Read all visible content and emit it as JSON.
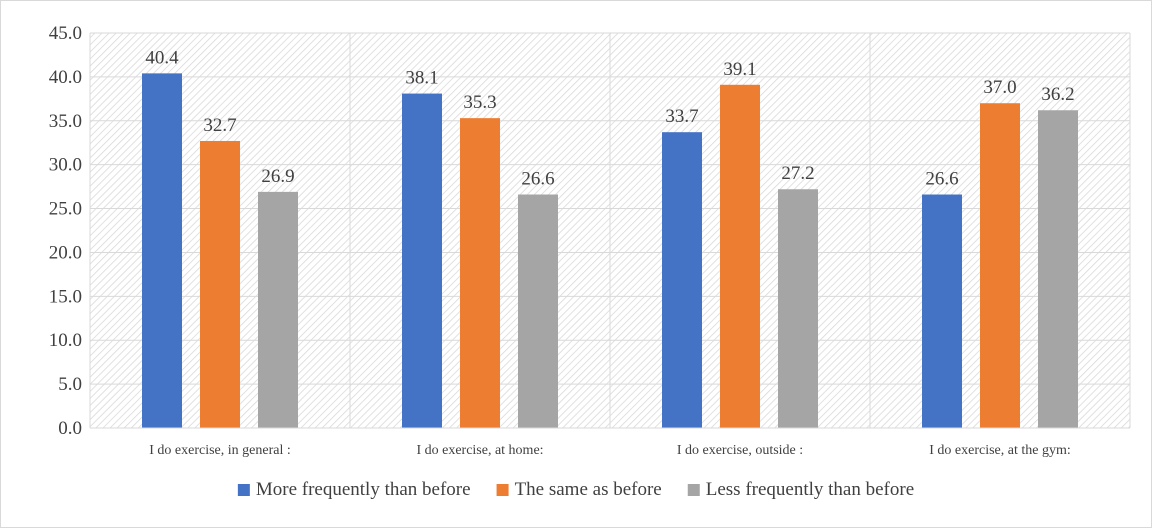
{
  "chart_data": {
    "type": "bar",
    "title": "",
    "xlabel": "",
    "ylabel": "",
    "categories": [
      "I do exercise, in general :",
      "I do exercise, at home:",
      "I do exercise, outside :",
      "I do exercise, at the gym:"
    ],
    "series": [
      {
        "name": "More frequently than before",
        "color": "#4472C4",
        "values": [
          40.4,
          38.1,
          33.7,
          26.6
        ]
      },
      {
        "name": "The same as before",
        "color": "#ED7D31",
        "values": [
          32.7,
          35.3,
          39.1,
          37.0
        ]
      },
      {
        "name": "Less frequently than before",
        "color": "#A5A5A5",
        "values": [
          26.9,
          26.6,
          27.2,
          36.2
        ]
      }
    ],
    "ylim": [
      0,
      45
    ],
    "yticks": [
      "0.0",
      "5.0",
      "10.0",
      "15.0",
      "20.0",
      "25.0",
      "30.0",
      "35.0",
      "40.0",
      "45.0"
    ],
    "data_labels_decimals": 1,
    "grid": true,
    "plot_background": "hatched",
    "legend_position": "bottom"
  }
}
